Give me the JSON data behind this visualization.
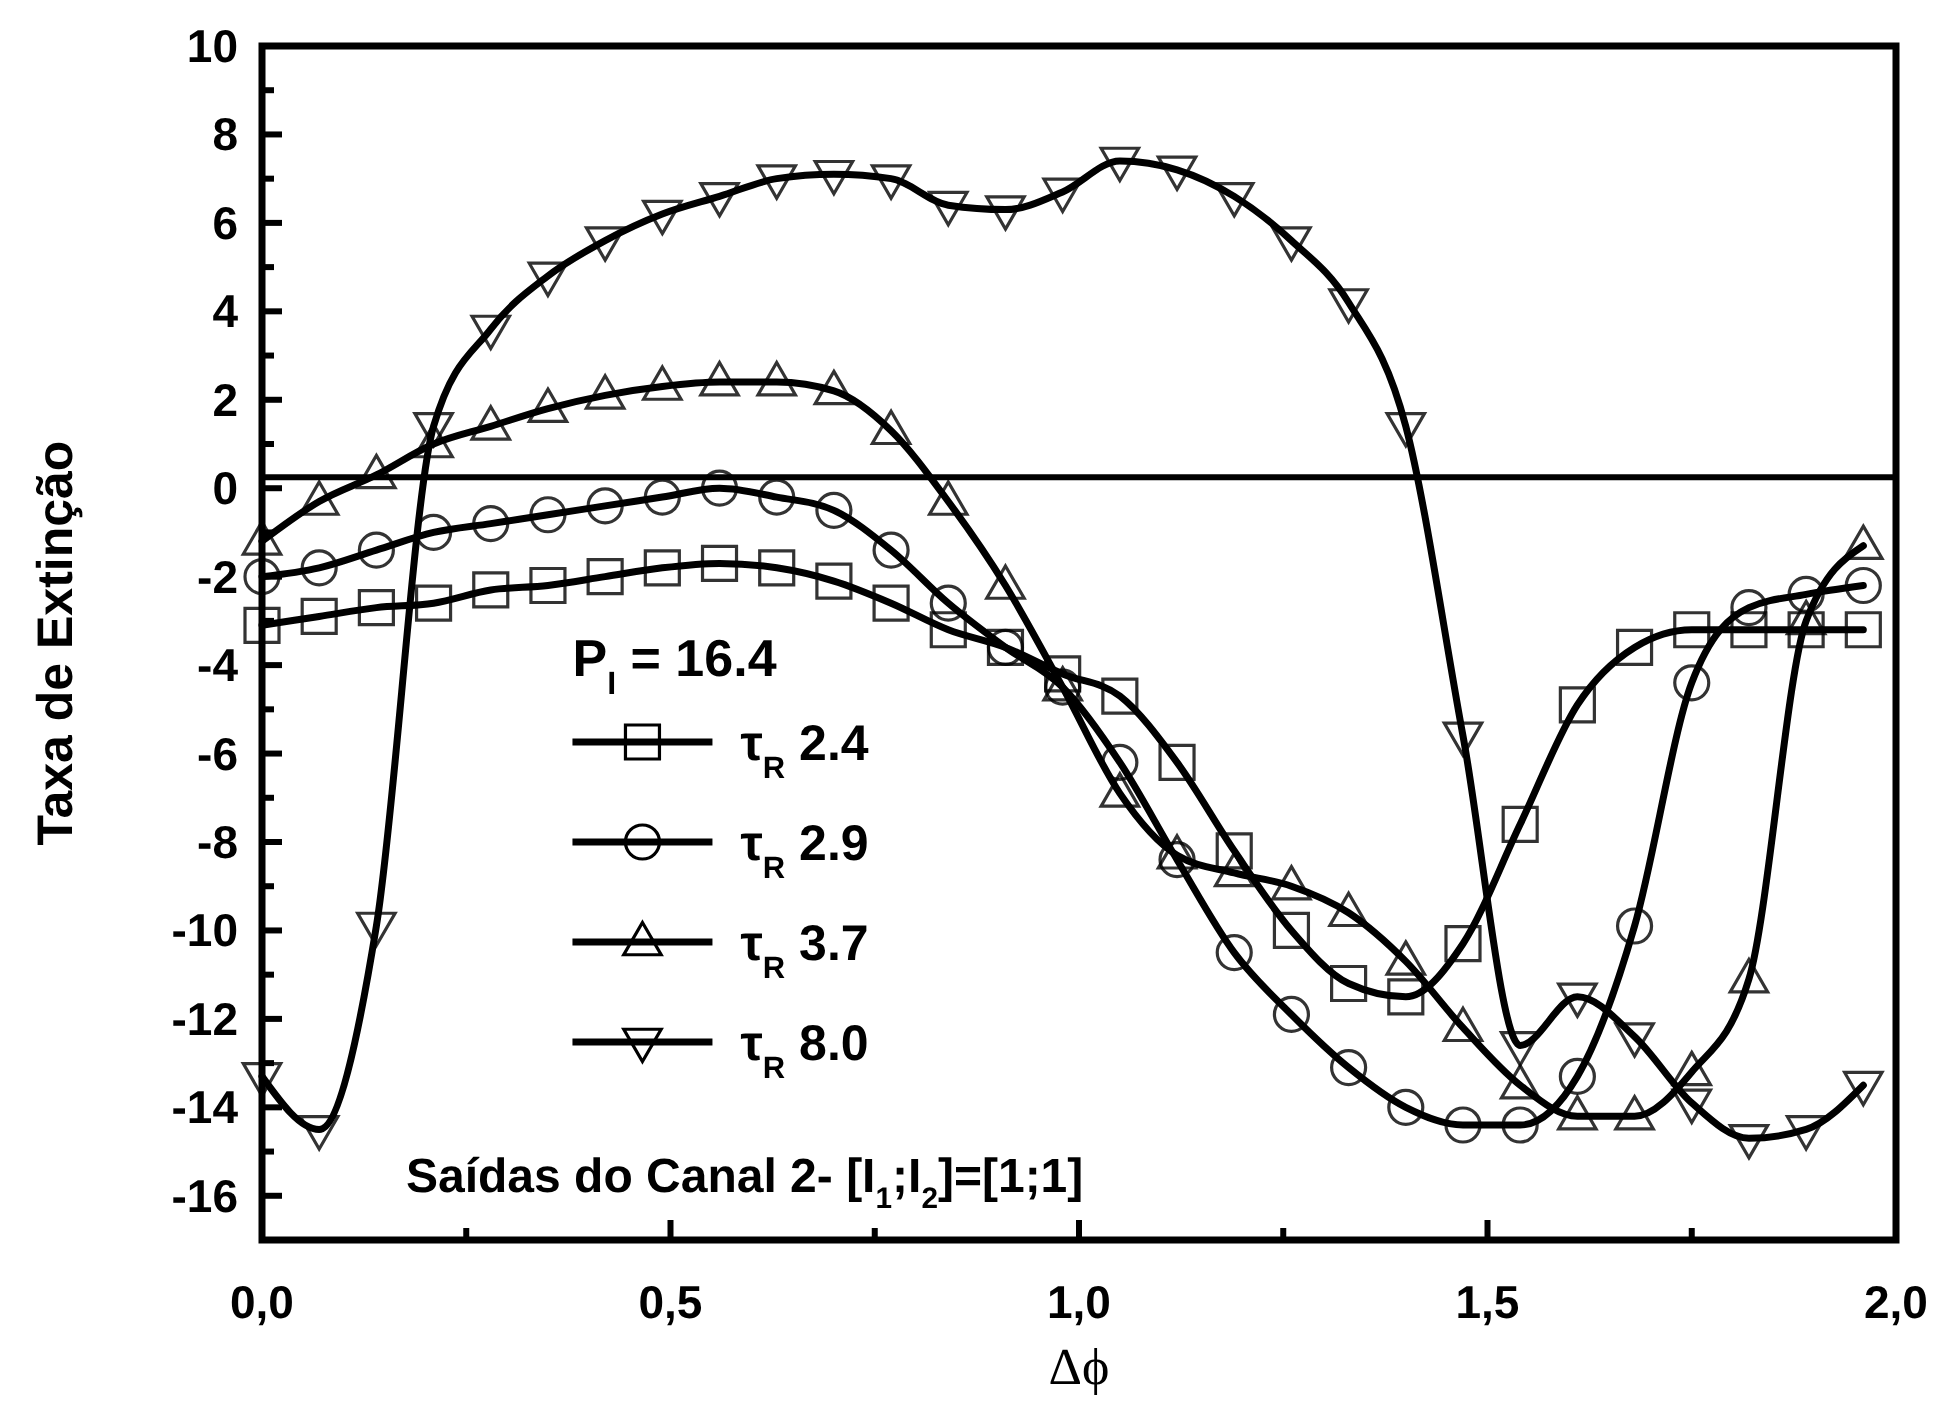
{
  "chart_data": {
    "type": "line",
    "xlabel": "Δϕ",
    "ylabel": "Taxa de Extinção",
    "legend_title": "P$_{I}$ = 16.4",
    "annotations": [
      "Saídas do Canal 2- [I$_{1}$;I$_{2}$]=[1;1]"
    ],
    "x": [
      0,
      0.07,
      0.14,
      0.21,
      0.28,
      0.35,
      0.42,
      0.49,
      0.56,
      0.63,
      0.7,
      0.77,
      0.84,
      0.91,
      0.98,
      1.05,
      1.12,
      1.19,
      1.26,
      1.33,
      1.4,
      1.47,
      1.54,
      1.61,
      1.68,
      1.75,
      1.82,
      1.89,
      1.96
    ],
    "series": [
      {
        "name": "τ$_{R}$ 2.4",
        "color": "#000000",
        "marker": "square",
        "values": [
          -3.1,
          -2.9,
          -2.7,
          -2.6,
          -2.3,
          -2.2,
          -2.0,
          -1.8,
          -1.7,
          -1.8,
          -2.1,
          -2.6,
          -3.2,
          -3.6,
          -4.2,
          -4.7,
          -6.2,
          -8.2,
          -10.0,
          -11.2,
          -11.5,
          -10.3,
          -7.6,
          -4.9,
          -3.6,
          -3.2,
          -3.2,
          -3.2,
          -3.2
        ]
      },
      {
        "name": "τ$_{R}$ 2.9",
        "color": "#000000",
        "marker": "circle",
        "values": [
          -2.0,
          -1.8,
          -1.4,
          -1.0,
          -0.8,
          -0.6,
          -0.4,
          -0.2,
          0.0,
          -0.2,
          -0.5,
          -1.4,
          -2.6,
          -3.6,
          -4.5,
          -6.2,
          -8.4,
          -10.5,
          -11.9,
          -13.1,
          -14.0,
          -14.4,
          -14.4,
          -13.3,
          -9.9,
          -4.4,
          -2.7,
          -2.4,
          -2.2
        ]
      },
      {
        "name": "τ$_{R}$ 3.7",
        "color": "#000000",
        "marker": "triangle",
        "values": [
          -1.2,
          -0.3,
          0.3,
          1.0,
          1.4,
          1.8,
          2.1,
          2.3,
          2.4,
          2.4,
          2.2,
          1.3,
          -0.3,
          -2.2,
          -4.5,
          -6.9,
          -8.3,
          -8.7,
          -9.0,
          -9.6,
          -10.7,
          -12.2,
          -13.5,
          -14.2,
          -14.2,
          -13.2,
          -11.1,
          -3.0,
          -1.3
        ]
      },
      {
        "name": "τ$_{R}$ 8.0",
        "color": "#000000",
        "marker": "triangle-down",
        "values": [
          -13.3,
          -14.5,
          -9.9,
          1.4,
          3.6,
          4.8,
          5.6,
          6.2,
          6.6,
          7.0,
          7.1,
          7.0,
          6.4,
          6.3,
          6.7,
          7.4,
          7.2,
          6.6,
          5.6,
          4.2,
          1.4,
          -5.6,
          -12.6,
          -11.5,
          -12.4,
          -13.9,
          -14.7,
          -14.5,
          -13.5
        ]
      }
    ],
    "xlim": [
      0,
      2
    ],
    "ylim": [
      -17,
      10
    ],
    "xticks": [
      {
        "value": 0,
        "label": "0,0"
      },
      {
        "value": 0.25,
        "label": null
      },
      {
        "value": 0.5,
        "label": "0,5"
      },
      {
        "value": 0.75,
        "label": null
      },
      {
        "value": 1,
        "label": "1,0"
      },
      {
        "value": 1.25,
        "label": null
      },
      {
        "value": 1.5,
        "label": "1,5"
      },
      {
        "value": 1.75,
        "label": null
      },
      {
        "value": 2,
        "label": "2,0"
      }
    ],
    "yticks": [
      -16,
      {
        "value": -15,
        "label": null
      },
      -14,
      {
        "value": -13,
        "label": null
      },
      -12,
      {
        "value": -11,
        "label": null
      },
      -10,
      {
        "value": -9,
        "label": null
      },
      -8,
      {
        "value": -7,
        "label": null
      },
      -6,
      {
        "value": -5,
        "label": null
      },
      -4,
      {
        "value": -3,
        "label": null
      },
      -2,
      {
        "value": -1,
        "label": null
      },
      0,
      {
        "value": 1,
        "label": null
      },
      2,
      {
        "value": 3,
        "label": null
      },
      4,
      {
        "value": 5,
        "label": null
      },
      6,
      {
        "value": 7,
        "label": null
      },
      8,
      {
        "value": 9,
        "label": null
      },
      10
    ],
    "ref_lines": [
      {
        "axis": "y",
        "value": 0.25,
        "color": "#000000"
      }
    ],
    "legend": "bottom left",
    "grid": false,
    "line_style": "solid"
  }
}
